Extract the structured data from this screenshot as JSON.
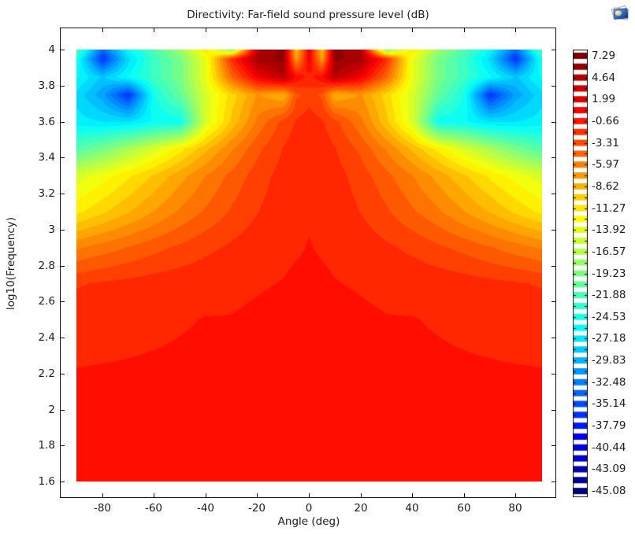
{
  "window": {
    "graphics_icon": "image-stack-icon"
  },
  "chart_data": {
    "type": "heatmap",
    "title": "Directivity: Far-field sound pressure level (dB)",
    "xlabel": "Angle (deg)",
    "ylabel": "log10(Frequency)",
    "values_unit": "dB",
    "x_range_deg": [
      -90,
      90
    ],
    "y_range_log10f": [
      1.6,
      4.0
    ],
    "x_tick_labels": [
      "-80",
      "-60",
      "-40",
      "-20",
      "0",
      "20",
      "40",
      "60",
      "80"
    ],
    "y_tick_labels": [
      "4",
      "3.8",
      "3.6",
      "3.4",
      "3.2",
      "3",
      "2.8",
      "2.6",
      "2.4",
      "2.2",
      "2",
      "1.8",
      "1.6"
    ],
    "grid_lines": "off",
    "grid": {
      "angles_deg": [
        -90,
        -80,
        -70,
        -60,
        -50,
        -40,
        -30,
        -20,
        -10,
        -5,
        0,
        5,
        10,
        20,
        30,
        40,
        50,
        60,
        70,
        80,
        90
      ],
      "log10_frequency": [
        1.6,
        2.1,
        2.5,
        2.7,
        2.9,
        3.1,
        3.3,
        3.45,
        3.6,
        3.75,
        3.85,
        3.95,
        4.0
      ],
      "spl_db": [
        [
          0.2,
          0.2,
          0.2,
          0.2,
          0.2,
          0.2,
          0.2,
          0.2,
          0.2,
          0.2,
          0.2,
          0.2,
          0.2,
          0.2,
          0.2,
          0.2,
          0.2,
          0.2,
          0.2,
          0.2,
          0.2
        ],
        [
          0.2,
          0.2,
          0.2,
          0.2,
          0.2,
          0.2,
          0.2,
          0.2,
          0.2,
          0.2,
          0.2,
          0.2,
          0.2,
          0.2,
          0.2,
          0.2,
          0.2,
          0.2,
          0.2,
          0.2,
          0.2
        ],
        [
          -0.5,
          -0.4,
          -0.3,
          -0.2,
          -0.1,
          0,
          0,
          0.1,
          0.2,
          0.2,
          0.2,
          0.2,
          0.2,
          0.1,
          0,
          0,
          -0.1,
          -0.2,
          -0.3,
          -0.4,
          -0.5
        ],
        [
          -1.5,
          -1.2,
          -0.95,
          -0.7,
          -0.5,
          -0.35,
          -0.2,
          -0.1,
          0,
          0.1,
          0.1,
          0.1,
          0,
          -0.1,
          -0.2,
          -0.35,
          -0.5,
          -0.7,
          -0.95,
          -1.2,
          -1.5
        ],
        [
          -5.5,
          -4.7,
          -3.9,
          -3.1,
          -2.4,
          -1.7,
          -1.1,
          -0.5,
          -0.2,
          -0.1,
          0,
          -0.1,
          -0.2,
          -0.5,
          -1.1,
          -1.7,
          -2.4,
          -3.1,
          -3.9,
          -4.7,
          -5.5
        ],
        [
          -11,
          -9.6,
          -8.1,
          -6.6,
          -5.1,
          -3.8,
          -2.5,
          -1.4,
          -0.5,
          -0.2,
          -0.1,
          -0.2,
          -0.5,
          -1.4,
          -2.5,
          -3.8,
          -5.1,
          -6.6,
          -8.1,
          -9.6,
          -11
        ],
        [
          -14,
          -12.6,
          -10.9,
          -9.1,
          -7.2,
          -5.3,
          -3.6,
          -2,
          -0.8,
          -0.4,
          -0.2,
          -0.4,
          -0.8,
          -2,
          -3.6,
          -5.3,
          -7.2,
          -9.1,
          -10.9,
          -12.6,
          -14
        ],
        [
          -21,
          -19,
          -16.5,
          -14,
          -11.2,
          -8.3,
          -5.5,
          -3,
          -1.3,
          -0.7,
          -0.4,
          -0.7,
          -1.3,
          -3,
          -5.5,
          -8.3,
          -11.2,
          -14,
          -16.5,
          -19,
          -21
        ],
        [
          -26,
          -26.5,
          -26.5,
          -25,
          -24.5,
          -14,
          -9,
          -5,
          -2.2,
          -1.2,
          -0.6,
          -1.2,
          -2.2,
          -5,
          -9,
          -14,
          -24.5,
          -25,
          -26.5,
          -26.5,
          -26
        ],
        [
          -27,
          -30,
          -36,
          -24,
          -20,
          -14,
          -10,
          -6.5,
          -8,
          -3,
          -2,
          -3,
          -8,
          -6.5,
          -10,
          -14,
          -20,
          -24,
          -36,
          -30,
          -27
        ],
        [
          -25,
          -28,
          -25,
          -22,
          -19,
          -13,
          -4,
          2,
          5,
          1,
          -0.5,
          1,
          5,
          2,
          -4,
          -13,
          -19,
          -22,
          -25,
          -28,
          -25
        ],
        [
          -24,
          -36,
          -27,
          -22,
          -19,
          -13,
          -1,
          6,
          7,
          -7,
          2,
          -7,
          7,
          6,
          -1,
          -13,
          -19,
          -22,
          -27,
          -36,
          -24
        ],
        [
          -21,
          -33,
          -25,
          -21,
          -17,
          -11,
          -18,
          5,
          7.2,
          -9,
          2,
          -9,
          7.2,
          5,
          -18,
          -11,
          -17,
          -21,
          -25,
          -33,
          -21
        ]
      ]
    },
    "colorbar": {
      "vmax": 7.29,
      "vmin": -45.08,
      "level_step_db": 1.325,
      "n_levels": 40,
      "n_swatches": 41,
      "colormap": "rainbow (jet-like)",
      "labels": [
        "7.29",
        "4.64",
        "1.99",
        "-0.66",
        "-3.31",
        "-5.97",
        "-8.62",
        "-11.27",
        "-13.92",
        "-16.57",
        "-19.23",
        "-21.88",
        "-24.53",
        "-27.18",
        "-29.83",
        "-32.48",
        "-35.14",
        "-37.79",
        "-40.44",
        "-43.09",
        "-45.08"
      ]
    },
    "colors": {
      "background": "#ffffff",
      "frame": "#111111",
      "colormap_min": "#00007f",
      "colormap_max": "#7f0000",
      "dominant_fill": "#ff1e00"
    }
  }
}
